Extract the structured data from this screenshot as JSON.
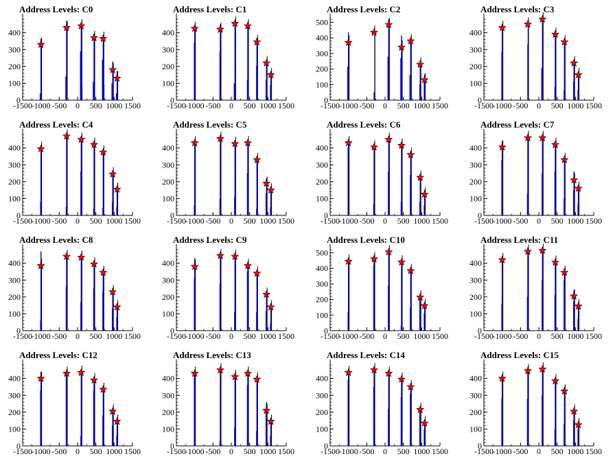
{
  "x_ticks": [
    -1500,
    -1000,
    -500,
    0,
    500,
    1000,
    1500
  ],
  "chart_data": [
    {
      "type": "bar",
      "title": "Address Levels: C0",
      "xlim": [
        -1500,
        1500
      ],
      "ylim": [
        0,
        480
      ],
      "y_ticks": [
        0,
        100,
        200,
        300,
        400
      ],
      "peaks": {
        "x": [
          -1000,
          -300,
          100,
          450,
          700,
          960,
          1080
        ],
        "y": [
          330,
          430,
          440,
          370,
          365,
          180,
          130
        ]
      },
      "bars": {
        "x": [
          -1020,
          -1000,
          -320,
          -300,
          80,
          100,
          120,
          430,
          450,
          680,
          700,
          720,
          940,
          960,
          1060,
          1080
        ],
        "y": [
          40,
          365,
          140,
          470,
          290,
          460,
          80,
          110,
          395,
          240,
          370,
          90,
          100,
          230,
          40,
          175
        ]
      }
    },
    {
      "type": "bar",
      "title": "Address Levels: C1",
      "xlim": [
        -1500,
        1500
      ],
      "ylim": [
        0,
        480
      ],
      "y_ticks": [
        0,
        100,
        200,
        300,
        400
      ],
      "peaks": {
        "x": [
          -1000,
          -300,
          100,
          450,
          700,
          960,
          1080
        ],
        "y": [
          425,
          420,
          455,
          440,
          345,
          220,
          150
        ]
      },
      "bars": {
        "x": [
          -1010,
          -1000,
          -310,
          -300,
          80,
          100,
          440,
          450,
          690,
          700,
          950,
          960,
          1070,
          1080
        ],
        "y": [
          340,
          440,
          290,
          450,
          100,
          460,
          120,
          455,
          205,
          370,
          120,
          240,
          90,
          160
        ]
      }
    },
    {
      "type": "bar",
      "title": "Address Levels: C2",
      "xlim": [
        -1500,
        1500
      ],
      "ylim": [
        0,
        520
      ],
      "y_ticks": [
        0,
        100,
        200,
        300,
        400,
        500
      ],
      "peaks": {
        "x": [
          -1000,
          -300,
          100,
          450,
          700,
          960,
          1080
        ],
        "y": [
          370,
          435,
          485,
          340,
          380,
          230,
          130
        ]
      },
      "bars": {
        "x": [
          -1020,
          -1000,
          -300,
          -280,
          80,
          100,
          430,
          450,
          680,
          700,
          950,
          960,
          1070,
          1080
        ],
        "y": [
          215,
          435,
          50,
          440,
          280,
          520,
          270,
          415,
          160,
          400,
          100,
          235,
          110,
          165
        ]
      }
    },
    {
      "type": "bar",
      "title": "Address Levels: C3",
      "xlim": [
        -1500,
        1500
      ],
      "ylim": [
        0,
        480
      ],
      "y_ticks": [
        0,
        100,
        200,
        300,
        400
      ],
      "peaks": {
        "x": [
          -1000,
          -300,
          100,
          450,
          700,
          960,
          1080
        ],
        "y": [
          430,
          450,
          480,
          390,
          345,
          220,
          150
        ]
      },
      "bars": {
        "x": [
          -1010,
          -1000,
          -300,
          -290,
          80,
          100,
          440,
          450,
          690,
          700,
          950,
          960,
          1070,
          1080
        ],
        "y": [
          285,
          440,
          330,
          470,
          190,
          475,
          80,
          410,
          60,
          345,
          110,
          225,
          60,
          160
        ]
      }
    },
    {
      "type": "bar",
      "title": "Address Levels: C4",
      "xlim": [
        -1500,
        1500
      ],
      "ylim": [
        0,
        480
      ],
      "y_ticks": [
        0,
        100,
        200,
        300,
        400
      ],
      "peaks": {
        "x": [
          -1000,
          -300,
          100,
          450,
          700,
          960,
          1080
        ],
        "y": [
          395,
          470,
          450,
          420,
          375,
          245,
          155
        ]
      },
      "bars": {
        "x": [
          -1010,
          -1000,
          -310,
          -300,
          90,
          100,
          440,
          450,
          690,
          700,
          950,
          960,
          1070,
          1080
        ],
        "y": [
          80,
          405,
          50,
          485,
          260,
          450,
          40,
          435,
          45,
          385,
          80,
          245,
          50,
          165
        ]
      }
    },
    {
      "type": "bar",
      "title": "Address Levels: C5",
      "xlim": [
        -1500,
        1500
      ],
      "ylim": [
        0,
        480
      ],
      "y_ticks": [
        0,
        100,
        200,
        300,
        400
      ],
      "peaks": {
        "x": [
          -1000,
          -300,
          100,
          450,
          700,
          960,
          1080
        ],
        "y": [
          430,
          455,
          425,
          430,
          330,
          190,
          150
        ]
      },
      "bars": {
        "x": [
          -1010,
          -1000,
          -310,
          -300,
          90,
          100,
          440,
          450,
          690,
          700,
          950,
          960,
          1070,
          1080
        ],
        "y": [
          60,
          440,
          100,
          460,
          110,
          430,
          250,
          435,
          40,
          335,
          130,
          220,
          50,
          160
        ]
      }
    },
    {
      "type": "bar",
      "title": "Address Levels: C6",
      "xlim": [
        -1500,
        1500
      ],
      "ylim": [
        0,
        480
      ],
      "y_ticks": [
        0,
        100,
        200,
        300,
        400
      ],
      "peaks": {
        "x": [
          -1000,
          -300,
          100,
          450,
          700,
          960,
          1080
        ],
        "y": [
          430,
          405,
          450,
          415,
          360,
          225,
          125
        ]
      },
      "bars": {
        "x": [
          -1010,
          -1000,
          -310,
          -300,
          90,
          100,
          440,
          450,
          690,
          700,
          950,
          960,
          1070,
          1080
        ],
        "y": [
          400,
          440,
          70,
          420,
          260,
          450,
          80,
          420,
          240,
          370,
          80,
          240,
          60,
          150
        ]
      }
    },
    {
      "type": "bar",
      "title": "Address Levels: C7",
      "xlim": [
        -1500,
        1500
      ],
      "ylim": [
        0,
        480
      ],
      "y_ticks": [
        0,
        100,
        200,
        300,
        400
      ],
      "peaks": {
        "x": [
          -1000,
          -300,
          100,
          450,
          700,
          960,
          1080
        ],
        "y": [
          405,
          460,
          460,
          420,
          330,
          210,
          160
        ]
      },
      "bars": {
        "x": [
          -1010,
          -1000,
          -310,
          -300,
          90,
          100,
          440,
          450,
          690,
          700,
          950,
          960,
          1070,
          1080
        ],
        "y": [
          330,
          440,
          130,
          470,
          250,
          460,
          260,
          425,
          100,
          350,
          150,
          260,
          70,
          170
        ]
      }
    },
    {
      "type": "bar",
      "title": "Address Levels: C8",
      "xlim": [
        -1500,
        1500
      ],
      "ylim": [
        0,
        480
      ],
      "y_ticks": [
        0,
        100,
        200,
        300,
        400
      ],
      "peaks": {
        "x": [
          -1000,
          -300,
          100,
          450,
          700,
          960,
          1080
        ],
        "y": [
          385,
          440,
          435,
          395,
          345,
          230,
          140
        ]
      },
      "bars": {
        "x": [
          -1010,
          -1000,
          -310,
          -300,
          90,
          100,
          440,
          450,
          690,
          700,
          950,
          960,
          1070,
          1080
        ],
        "y": [
          60,
          470,
          260,
          445,
          170,
          440,
          250,
          400,
          230,
          355,
          130,
          235,
          80,
          145
        ]
      }
    },
    {
      "type": "bar",
      "title": "Address Levels: C9",
      "xlim": [
        -1500,
        1500
      ],
      "ylim": [
        0,
        480
      ],
      "y_ticks": [
        0,
        100,
        200,
        300,
        400
      ],
      "peaks": {
        "x": [
          -1000,
          -300,
          100,
          450,
          700,
          960,
          1080
        ],
        "y": [
          380,
          445,
          440,
          385,
          340,
          215,
          140
        ]
      },
      "bars": {
        "x": [
          -1010,
          -1000,
          -310,
          -300,
          90,
          100,
          440,
          450,
          690,
          700,
          950,
          960,
          1070,
          1080
        ],
        "y": [
          310,
          430,
          280,
          450,
          110,
          450,
          350,
          405,
          110,
          345,
          120,
          225,
          40,
          150
        ]
      }
    },
    {
      "type": "bar",
      "title": "Address Levels: C10",
      "xlim": [
        -1500,
        1500
      ],
      "ylim": [
        0,
        520
      ],
      "y_ticks": [
        0,
        100,
        200,
        300,
        400,
        500
      ],
      "peaks": {
        "x": [
          -1000,
          -300,
          100,
          450,
          700,
          960,
          1080
        ],
        "y": [
          445,
          460,
          505,
          440,
          385,
          215,
          160
        ]
      },
      "bars": {
        "x": [
          -1010,
          -1000,
          -310,
          -300,
          90,
          100,
          440,
          450,
          690,
          700,
          950,
          960,
          1070,
          1080
        ],
        "y": [
          120,
          460,
          420,
          470,
          290,
          510,
          30,
          445,
          150,
          395,
          200,
          230,
          110,
          170
        ]
      }
    },
    {
      "type": "bar",
      "title": "Address Levels: C11",
      "xlim": [
        -1500,
        1500
      ],
      "ylim": [
        0,
        480
      ],
      "y_ticks": [
        0,
        100,
        200,
        300,
        400
      ],
      "peaks": {
        "x": [
          -1000,
          -300,
          100,
          450,
          700,
          960,
          1080
        ],
        "y": [
          420,
          470,
          475,
          405,
          345,
          205,
          145
        ]
      },
      "bars": {
        "x": [
          -1010,
          -1000,
          -310,
          -300,
          90,
          100,
          440,
          450,
          690,
          700,
          950,
          960,
          1070,
          1080
        ],
        "y": [
          160,
          430,
          200,
          480,
          300,
          480,
          210,
          410,
          300,
          370,
          170,
          240,
          70,
          150
        ]
      }
    },
    {
      "type": "bar",
      "title": "Address Levels: C12",
      "xlim": [
        -1500,
        1500
      ],
      "ylim": [
        0,
        480
      ],
      "y_ticks": [
        0,
        100,
        200,
        300,
        400
      ],
      "peaks": {
        "x": [
          -1000,
          -300,
          100,
          450,
          700,
          960,
          1080
        ],
        "y": [
          400,
          430,
          435,
          390,
          335,
          205,
          145
        ]
      },
      "bars": {
        "x": [
          -1010,
          -1000,
          -310,
          -300,
          90,
          100,
          440,
          450,
          690,
          700,
          950,
          960,
          1070,
          1080
        ],
        "y": [
          330,
          440,
          420,
          440,
          60,
          445,
          330,
          395,
          180,
          340,
          120,
          210,
          60,
          150
        ]
      }
    },
    {
      "type": "bar",
      "title": "Address Levels: C13",
      "xlim": [
        -1500,
        1500
      ],
      "ylim": [
        0,
        480
      ],
      "y_ticks": [
        0,
        100,
        200,
        300,
        400
      ],
      "peaks": {
        "x": [
          -1000,
          -300,
          100,
          450,
          700,
          960,
          1080
        ],
        "y": [
          430,
          450,
          410,
          430,
          395,
          210,
          145
        ]
      },
      "bars": {
        "x": [
          -1010,
          -1000,
          -310,
          -300,
          90,
          100,
          440,
          450,
          690,
          700,
          950,
          960,
          1070,
          1080
        ],
        "y": [
          420,
          440,
          30,
          455,
          110,
          415,
          360,
          430,
          90,
          400,
          200,
          260,
          60,
          150
        ]
      }
    },
    {
      "type": "bar",
      "title": "Address Levels: C14",
      "xlim": [
        -1500,
        1500
      ],
      "ylim": [
        0,
        480
      ],
      "y_ticks": [
        0,
        100,
        200,
        300,
        400
      ],
      "peaks": {
        "x": [
          -1000,
          -300,
          100,
          450,
          700,
          960,
          1080
        ],
        "y": [
          435,
          450,
          430,
          395,
          350,
          215,
          135
        ]
      },
      "bars": {
        "x": [
          -1010,
          -1000,
          -310,
          -300,
          90,
          100,
          440,
          450,
          690,
          700,
          950,
          960,
          1070,
          1080
        ],
        "y": [
          390,
          440,
          350,
          460,
          220,
          440,
          290,
          400,
          310,
          360,
          200,
          220,
          100,
          140
        ]
      }
    },
    {
      "type": "bar",
      "title": "Address Levels: C15",
      "xlim": [
        -1500,
        1500
      ],
      "ylim": [
        0,
        480
      ],
      "y_ticks": [
        0,
        100,
        200,
        300,
        400
      ],
      "peaks": {
        "x": [
          -1000,
          -300,
          100,
          450,
          700,
          960,
          1080
        ],
        "y": [
          400,
          445,
          455,
          385,
          325,
          205,
          125
        ]
      },
      "bars": {
        "x": [
          -1010,
          -1000,
          -310,
          -300,
          90,
          100,
          440,
          450,
          690,
          700,
          950,
          960,
          1070,
          1080
        ],
        "y": [
          280,
          410,
          280,
          450,
          300,
          470,
          100,
          390,
          130,
          350,
          150,
          210,
          100,
          140
        ]
      }
    }
  ]
}
